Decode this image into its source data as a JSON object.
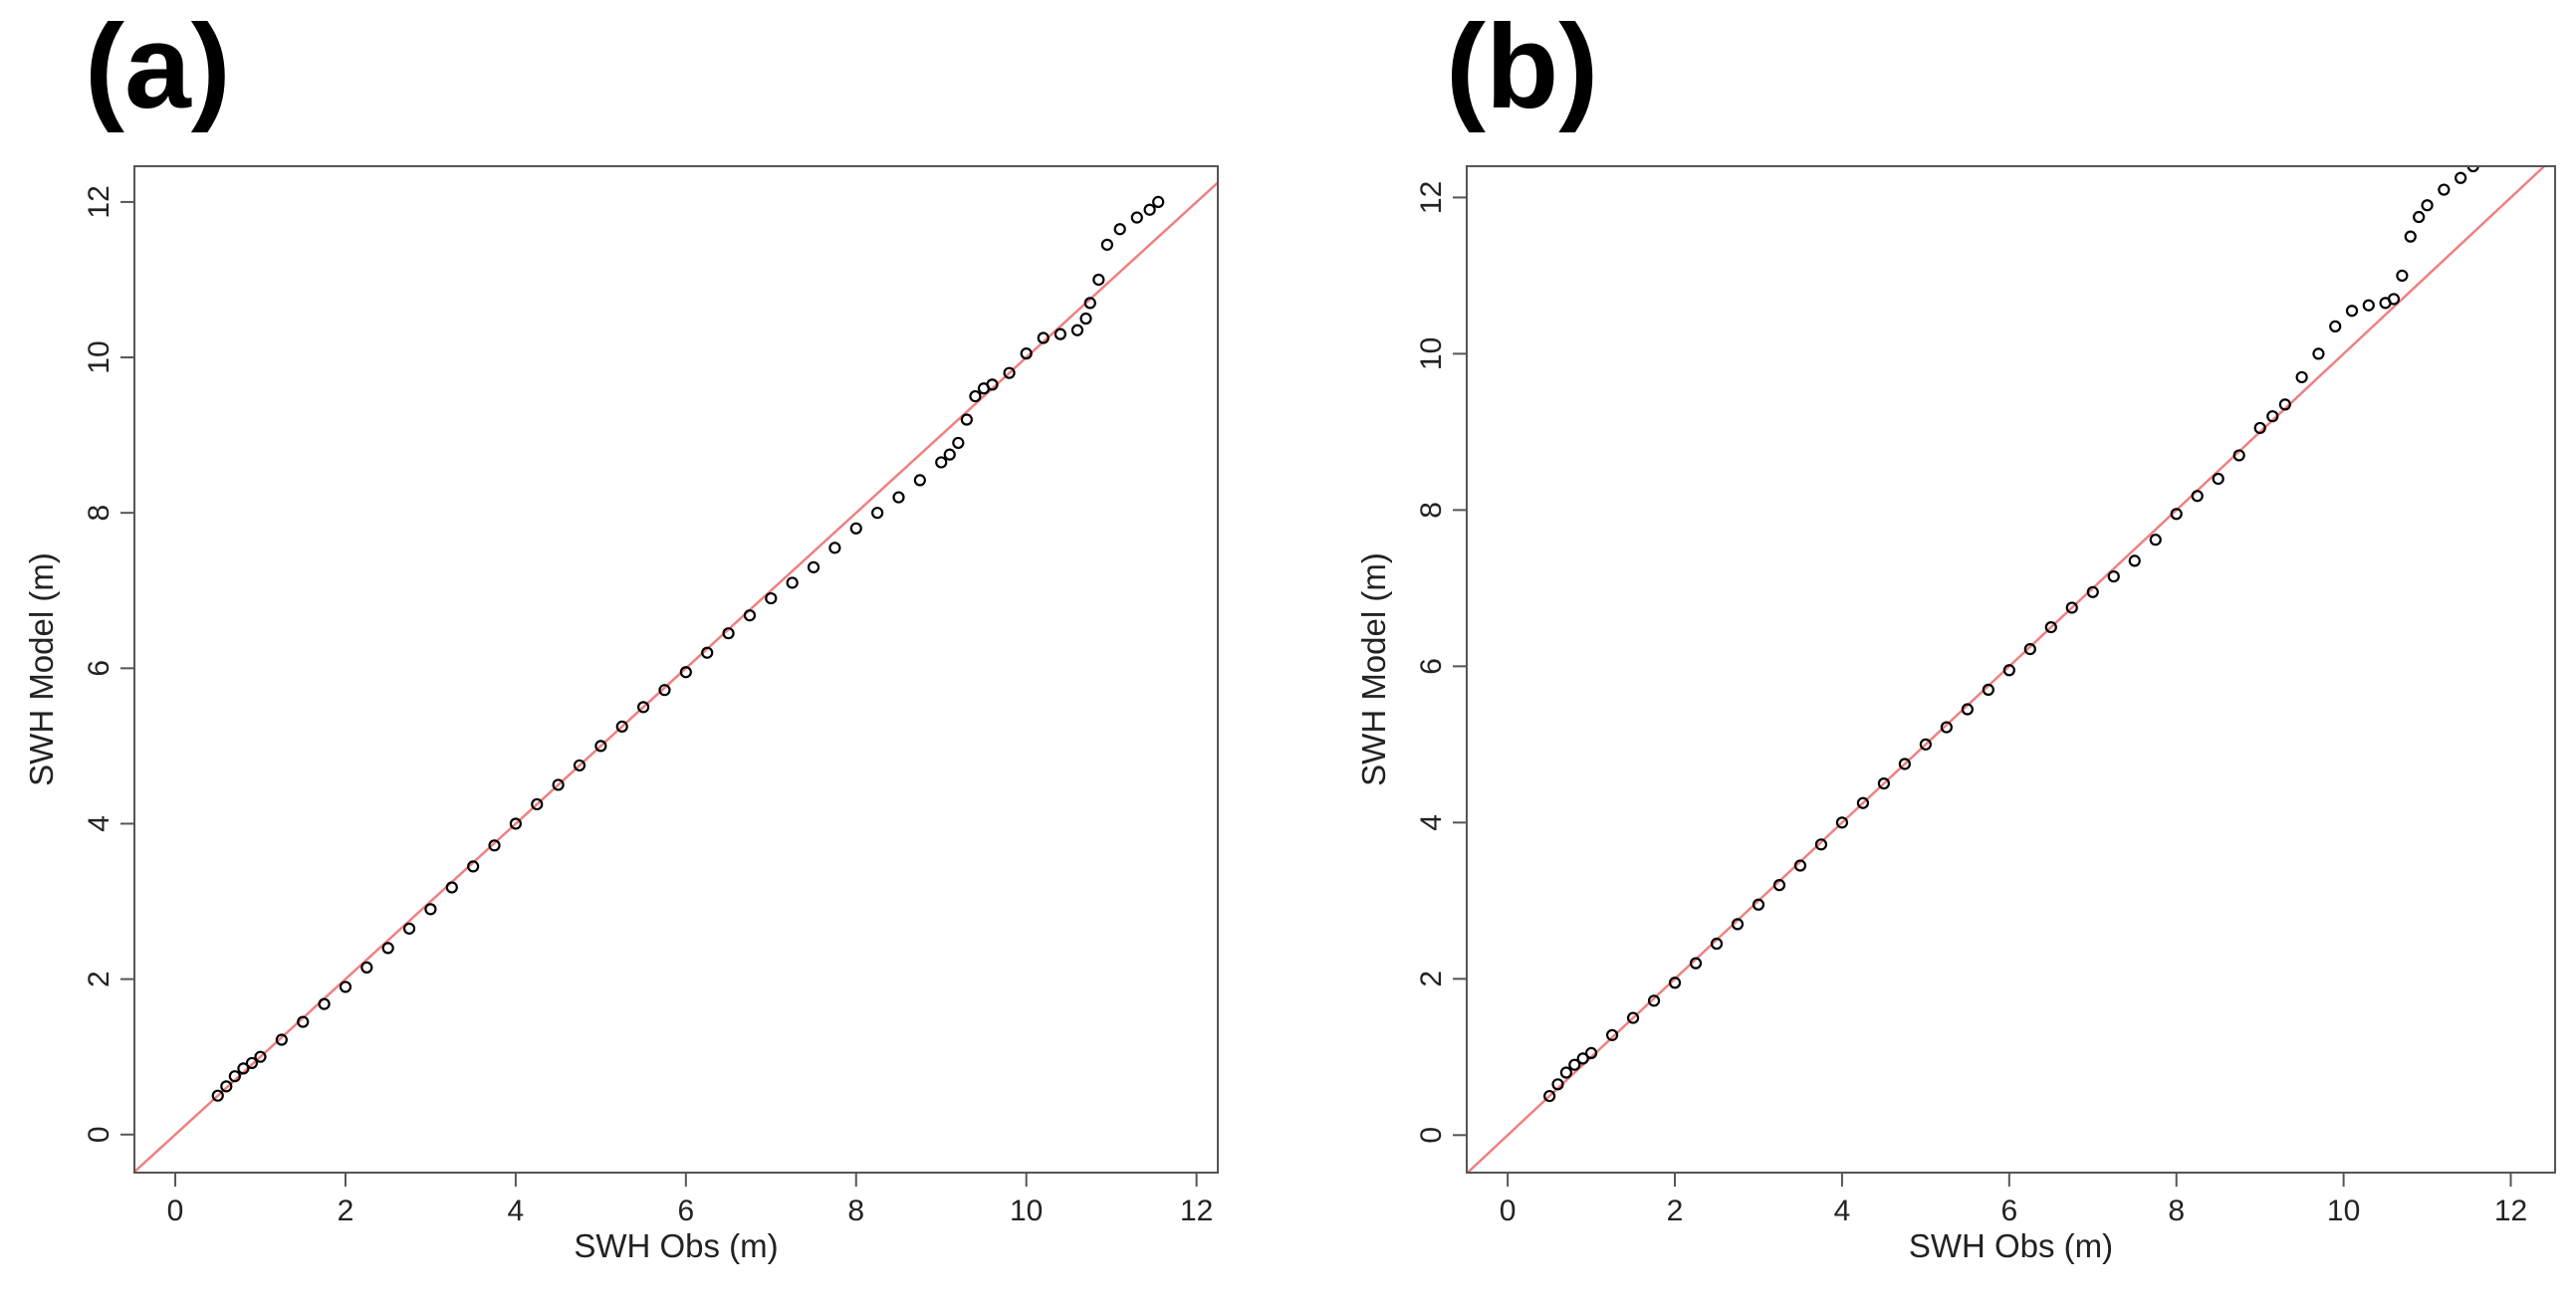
{
  "chart_data": [
    {
      "type": "scatter",
      "title": "(a)",
      "x_label": "SWH Obs (m)",
      "y_label": "SWH Model (m)",
      "xlim": [
        -0.48,
        12.25
      ],
      "ylim": [
        -0.49,
        12.46
      ],
      "xticks": [
        0,
        2,
        4,
        6,
        8,
        10,
        12
      ],
      "yticks": [
        0,
        2,
        4,
        6,
        8,
        10,
        12
      ],
      "marker_color": "#000000",
      "reference_line": true,
      "reference_line_color": "#f08080",
      "x": [
        0.5,
        0.6,
        0.7,
        0.8,
        0.9,
        1,
        1.25,
        1.5,
        1.75,
        2,
        2.25,
        2.5,
        2.75,
        3,
        3.25,
        3.5,
        3.75,
        4,
        4.25,
        4.5,
        4.75,
        5,
        5.25,
        5.5,
        5.75,
        6,
        6.25,
        6.5,
        6.75,
        7,
        7.25,
        7.5,
        7.75,
        8,
        8.25,
        8.5,
        8.75,
        9,
        9.1,
        9.2,
        9.3,
        9.4,
        9.5,
        9.6,
        9.8,
        10,
        10.2,
        10.4,
        10.6,
        10.7,
        10.75,
        10.85,
        10.95,
        11.1,
        11.3,
        11.45,
        11.55
      ],
      "y": [
        0.5,
        0.62,
        0.75,
        0.85,
        0.92,
        1.0,
        1.22,
        1.45,
        1.68,
        1.9,
        2.15,
        2.4,
        2.65,
        2.9,
        3.18,
        3.45,
        3.72,
        4.0,
        4.25,
        4.5,
        4.75,
        5.0,
        5.25,
        5.5,
        5.72,
        5.95,
        6.2,
        6.45,
        6.68,
        6.9,
        7.1,
        7.3,
        7.55,
        7.8,
        8.0,
        8.2,
        8.42,
        8.65,
        8.75,
        8.9,
        9.2,
        9.5,
        9.6,
        9.65,
        9.8,
        10.05,
        10.25,
        10.3,
        10.35,
        10.5,
        10.7,
        11.0,
        11.45,
        11.65,
        11.8,
        11.9,
        12.0
      ]
    },
    {
      "type": "scatter",
      "title": "(b)",
      "x_label": "SWH Obs (m)",
      "y_label": "SWH Model (m)",
      "xlim": [
        -0.49,
        12.53
      ],
      "ylim": [
        -0.48,
        12.4
      ],
      "xticks": [
        0,
        2,
        4,
        6,
        8,
        10,
        12
      ],
      "yticks": [
        0,
        2,
        4,
        6,
        8,
        10,
        12
      ],
      "marker_color": "#000000",
      "reference_line": true,
      "reference_line_color": "#f08080",
      "x": [
        0.5,
        0.6,
        0.7,
        0.8,
        0.9,
        1,
        1.25,
        1.5,
        1.75,
        2,
        2.25,
        2.5,
        2.75,
        3,
        3.25,
        3.5,
        3.75,
        4,
        4.25,
        4.5,
        4.75,
        5,
        5.25,
        5.5,
        5.75,
        6,
        6.25,
        6.5,
        6.75,
        7,
        7.25,
        7.5,
        7.75,
        8,
        8.25,
        8.5,
        8.75,
        9,
        9.15,
        9.3,
        9.5,
        9.7,
        9.9,
        10.1,
        10.3,
        10.5,
        10.6,
        10.7,
        10.8,
        10.9,
        11.0,
        11.2,
        11.4,
        11.55
      ],
      "y": [
        0.5,
        0.65,
        0.8,
        0.9,
        0.98,
        1.05,
        1.28,
        1.5,
        1.72,
        1.95,
        2.2,
        2.45,
        2.7,
        2.95,
        3.2,
        3.45,
        3.72,
        4.0,
        4.25,
        4.5,
        4.75,
        5.0,
        5.22,
        5.45,
        5.7,
        5.95,
        6.22,
        6.5,
        6.75,
        6.95,
        7.15,
        7.35,
        7.62,
        7.95,
        8.18,
        8.4,
        8.7,
        9.05,
        9.2,
        9.35,
        9.7,
        10.0,
        10.35,
        10.55,
        10.62,
        10.65,
        10.7,
        11.0,
        11.5,
        11.75,
        11.9,
        12.1,
        12.25,
        12.4
      ]
    }
  ]
}
